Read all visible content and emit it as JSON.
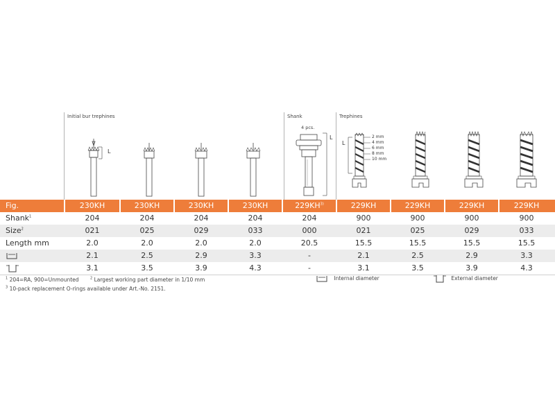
{
  "sections": {
    "initial": "Initial bur trephines",
    "shank": "Shank",
    "trephines": "Trephines"
  },
  "shank_pcs": "4 pcs.",
  "dims": {
    "L": "L",
    "sizes": [
      "2 mm",
      "4 mm",
      "6 mm",
      "8 mm",
      "10 mm"
    ]
  },
  "table": {
    "labels": {
      "fig": "Fig.",
      "shank": "Shank",
      "size": "Size",
      "length": "Length mm",
      "shank_sup": "1",
      "size_sup": "2"
    },
    "fig": [
      "230KH",
      "230KH",
      "230KH",
      "230KH",
      "229KH",
      "229KH",
      "229KH",
      "229KH",
      "229KH"
    ],
    "fig_shank_sup": "3)",
    "shank": [
      "204",
      "204",
      "204",
      "204",
      "204",
      "900",
      "900",
      "900",
      "900"
    ],
    "size": [
      "021",
      "025",
      "029",
      "033",
      "000",
      "021",
      "025",
      "029",
      "033"
    ],
    "length": [
      "2.0",
      "2.0",
      "2.0",
      "2.0",
      "20.5",
      "15.5",
      "15.5",
      "15.5",
      "15.5"
    ],
    "internal": [
      "2.1",
      "2.5",
      "2.9",
      "3.3",
      "-",
      "2.1",
      "2.5",
      "2.9",
      "3.3"
    ],
    "external": [
      "3.1",
      "3.5",
      "3.9",
      "4.3",
      "-",
      "3.1",
      "3.5",
      "3.9",
      "4.3"
    ]
  },
  "footnotes": {
    "note1": "204=RA, 900=Unmounted",
    "note2": "Largest working part diameter in 1/10 mm",
    "note3": "10-pack replacement O-rings available under Art.-No. 2151.",
    "sup1": "1",
    "sup2": "2",
    "sup3": "3"
  },
  "legend": {
    "internal": "Internal diameter",
    "external": "External diameter"
  }
}
